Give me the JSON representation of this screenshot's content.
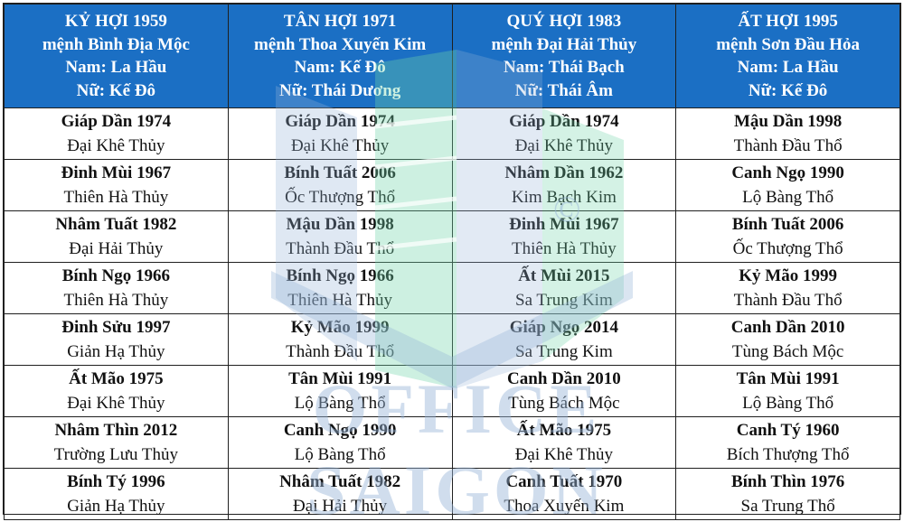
{
  "headers": [
    {
      "year": "KỶ HỢI 1959",
      "element": "mệnh Bình Địa Mộc",
      "male": "Nam: La Hầu",
      "female": "Nữ: Kế Đô"
    },
    {
      "year": "TÂN HỢI 1971",
      "element": "mệnh Thoa Xuyến Kim",
      "male": "Nam: Kế Đô",
      "female": "Nữ: Thái Dương"
    },
    {
      "year": "QUÝ HỢI 1983",
      "element": "mệnh Đại Hải Thủy",
      "male": "Nam: Thái Bạch",
      "female": "Nữ: Thái Âm"
    },
    {
      "year": "ẤT HỢI 1995",
      "element": "mệnh Sơn Đầu Hỏa",
      "male": "Nam: La Hầu",
      "female": "Nữ: Kế Đô"
    }
  ],
  "rows": [
    [
      {
        "name": "Giáp Dần 1974",
        "element": "Đại Khê Thủy"
      },
      {
        "name": "Giáp Dần 1974",
        "element": "Đại Khê Thủy"
      },
      {
        "name": "Giáp Dần 1974",
        "element": "Đại Khê Thủy"
      },
      {
        "name": "Mậu Dần 1998",
        "element": "Thành Đầu Thổ"
      }
    ],
    [
      {
        "name": "Đinh Mùi 1967",
        "element": "Thiên Hà Thủy"
      },
      {
        "name": "Bính Tuất 2006",
        "element": "Ốc Thượng Thổ"
      },
      {
        "name": "Nhâm Dần 1962",
        "element": "Kim Bạch Kim"
      },
      {
        "name": "Canh Ngọ 1990",
        "element": "Lộ Bàng Thổ"
      }
    ],
    [
      {
        "name": "Nhâm Tuất 1982",
        "element": "Đại Hải Thủy"
      },
      {
        "name": "Mậu Dần 1998",
        "element": "Thành Đầu Thổ"
      },
      {
        "name": "Đinh Mùi 1967",
        "element": "Thiên Hà Thủy"
      },
      {
        "name": "Bính Tuất 2006",
        "element": "Ốc Thượng Thổ"
      }
    ],
    [
      {
        "name": "Bính Ngọ 1966",
        "element": "Thiên Hà Thủy"
      },
      {
        "name": "Bính Ngọ 1966",
        "element": "Thiên Hà Thủy"
      },
      {
        "name": "Ất Mùi 2015",
        "element": "Sa Trung Kim"
      },
      {
        "name": "Kỷ Mão 1999",
        "element": "Thành Đầu Thổ"
      }
    ],
    [
      {
        "name": "Đinh Sửu 1997",
        "element": "Giản Hạ Thủy"
      },
      {
        "name": "Kỷ Mão 1999",
        "element": "Thành Đầu Thổ"
      },
      {
        "name": "Giáp Ngọ 2014",
        "element": "Sa Trung Kim"
      },
      {
        "name": "Canh Dần 2010",
        "element": "Tùng Bách Mộc"
      }
    ],
    [
      {
        "name": "Ất Mão 1975",
        "element": "Đại Khê Thủy"
      },
      {
        "name": "Tân Mùi 1991",
        "element": "Lộ Bàng Thổ"
      },
      {
        "name": "Canh Dần 2010",
        "element": "Tùng Bách Mộc"
      },
      {
        "name": "Tân Mùi 1991",
        "element": "Lộ Bàng Thổ"
      }
    ],
    [
      {
        "name": "Nhâm Thìn 2012",
        "element": "Trường Lưu Thủy"
      },
      {
        "name": "Canh Ngọ 1990",
        "element": "Lộ Bàng Thổ"
      },
      {
        "name": "Ất Mão 1975",
        "element": "Đại Khê Thủy"
      },
      {
        "name": "Canh Tý 1960",
        "element": "Bích Thượng Thổ"
      }
    ],
    [
      {
        "name": "Bính Tý 1996",
        "element": "Giản Hạ Thủy"
      },
      {
        "name": "Nhâm Tuất 1982",
        "element": "Đại Hải Thủy"
      },
      {
        "name": "Canh Tuất 1970",
        "element": "Thoa Xuyến Kim"
      },
      {
        "name": "Bính Thìn 1976",
        "element": "Sa Trung Thổ"
      }
    ]
  ],
  "watermark": {
    "text": "OFFICE SAIGON",
    "symbol": "©"
  },
  "colors": {
    "header_bg": "#1b6fc4",
    "header_text": "#ffffff",
    "watermark": "#9bb8d8",
    "watermark_green": "#6fd3a8"
  }
}
